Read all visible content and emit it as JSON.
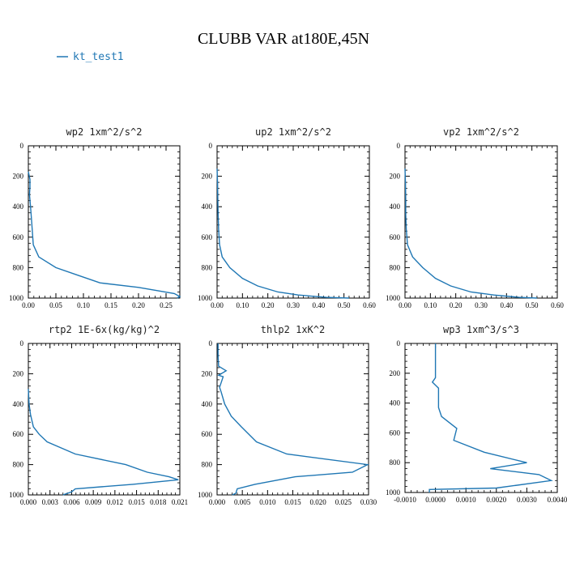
{
  "figure": {
    "title": "CLUBB VAR at180E,45N",
    "legend": {
      "label": "kt_test1",
      "color": "#1f77b4"
    }
  },
  "chart_data": [
    {
      "type": "line",
      "title": "wp2  1xm^2/s^2",
      "xlim": [
        0,
        0.275
      ],
      "ylim": [
        1000,
        0
      ],
      "xticks": [
        0,
        0.05,
        0.1,
        0.15,
        0.2,
        0.25
      ],
      "xticklabels": [
        "0.00",
        "0.05",
        "0.10",
        "0.15",
        "0.20",
        "0.25"
      ],
      "yticks": [
        0,
        200,
        400,
        600,
        800,
        1000
      ],
      "yticklabels": [
        "0",
        "200",
        "400",
        "600",
        "800",
        "1000"
      ],
      "series": [
        {
          "name": "kt_test1",
          "x": [
            0.0,
            0.003,
            0.003,
            0.002,
            0.004,
            0.006,
            0.009,
            0.019,
            0.05,
            0.09,
            0.13,
            0.2,
            0.265,
            0.275,
            0.27
          ],
          "y": [
            170,
            220,
            270,
            320,
            400,
            500,
            650,
            730,
            800,
            850,
            900,
            930,
            970,
            990,
            1000
          ]
        }
      ]
    },
    {
      "type": "line",
      "title": "up2  1xm^2/s^2",
      "xlim": [
        0,
        0.6
      ],
      "ylim": [
        1000,
        0
      ],
      "xticks": [
        0,
        0.1,
        0.2,
        0.3,
        0.4,
        0.5,
        0.6
      ],
      "xticklabels": [
        "0.00",
        "0.10",
        "0.20",
        "0.30",
        "0.40",
        "0.50",
        "0.60"
      ],
      "yticks": [
        0,
        200,
        400,
        600,
        800,
        1000
      ],
      "yticklabels": [
        "0",
        "200",
        "400",
        "600",
        "800",
        "1000"
      ],
      "series": [
        {
          "name": "kt_test1",
          "x": [
            0.0,
            0.002,
            0.003,
            0.004,
            0.006,
            0.01,
            0.02,
            0.05,
            0.1,
            0.16,
            0.24,
            0.32,
            0.43,
            0.52
          ],
          "y": [
            150,
            250,
            350,
            450,
            550,
            650,
            730,
            800,
            870,
            920,
            960,
            980,
            995,
            1000
          ]
        }
      ]
    },
    {
      "type": "line",
      "title": "vp2  1xm^2/s^2",
      "xlim": [
        0,
        0.6
      ],
      "ylim": [
        1000,
        0
      ],
      "xticks": [
        0,
        0.1,
        0.2,
        0.3,
        0.4,
        0.5,
        0.6
      ],
      "xticklabels": [
        "0.00",
        "0.10",
        "0.20",
        "0.30",
        "0.40",
        "0.50",
        "0.60"
      ],
      "yticks": [
        0,
        200,
        400,
        600,
        800,
        1000
      ],
      "yticklabels": [
        "0",
        "200",
        "400",
        "600",
        "800",
        "1000"
      ],
      "series": [
        {
          "name": "kt_test1",
          "x": [
            0.0,
            0.002,
            0.003,
            0.003,
            0.005,
            0.01,
            0.03,
            0.07,
            0.12,
            0.18,
            0.26,
            0.35,
            0.45,
            0.52
          ],
          "y": [
            150,
            250,
            350,
            450,
            550,
            650,
            730,
            800,
            870,
            920,
            960,
            980,
            995,
            1000
          ]
        }
      ]
    },
    {
      "type": "line",
      "title": "rtp2  1E-6x(kg/kg)^2",
      "xlim": [
        0,
        0.021
      ],
      "ylim": [
        1000,
        0
      ],
      "xticks": [
        0,
        0.003,
        0.006,
        0.009,
        0.012,
        0.015,
        0.018,
        0.021
      ],
      "xticklabels": [
        "0.000",
        "0.003",
        "0.006",
        "0.009",
        "0.012",
        "0.015",
        "0.018",
        "0.021"
      ],
      "yticks": [
        0,
        200,
        400,
        600,
        800,
        1000
      ],
      "yticklabels": [
        "0",
        "200",
        "400",
        "600",
        "800",
        "1000"
      ],
      "series": [
        {
          "name": "kt_test1",
          "x": [
            0.0,
            0.0001,
            0.0003,
            0.0007,
            0.0015,
            0.0026,
            0.0065,
            0.0135,
            0.0165,
            0.0195,
            0.0208,
            0.0145,
            0.0065,
            0.006,
            0.0048
          ],
          "y": [
            300,
            400,
            470,
            550,
            600,
            650,
            730,
            800,
            850,
            880,
            900,
            930,
            960,
            980,
            1000
          ]
        }
      ]
    },
    {
      "type": "line",
      "title": "thlp2  1xK^2",
      "xlim": [
        0,
        0.03
      ],
      "ylim": [
        1000,
        0
      ],
      "xticks": [
        0,
        0.005,
        0.01,
        0.015,
        0.02,
        0.025,
        0.03
      ],
      "xticklabels": [
        "0.000",
        "0.005",
        "0.010",
        "0.015",
        "0.020",
        "0.025",
        "0.030"
      ],
      "yticks": [
        0,
        200,
        400,
        600,
        800,
        1000
      ],
      "yticklabels": [
        "0",
        "200",
        "400",
        "600",
        "800",
        "1000"
      ],
      "series": [
        {
          "name": "kt_test1",
          "x": [
            0.0002,
            0.0002,
            0.0003,
            0.0018,
            0.0003,
            0.0012,
            0.0005,
            0.0008,
            0.0015,
            0.0028,
            0.0048,
            0.0078,
            0.0138,
            0.0298,
            0.0268,
            0.0155,
            0.0075,
            0.004,
            0.0037,
            0.003
          ],
          "y": [
            0,
            80,
            150,
            180,
            210,
            220,
            290,
            320,
            400,
            480,
            550,
            650,
            730,
            800,
            850,
            880,
            930,
            960,
            990,
            1000
          ]
        }
      ]
    },
    {
      "type": "line",
      "title": "wp3  1xm^3/s^3",
      "xlim": [
        -0.001,
        0.004
      ],
      "ylim": [
        1000,
        0
      ],
      "xticks": [
        -0.001,
        0.0,
        0.001,
        0.002,
        0.003,
        0.004
      ],
      "xticklabels": [
        "-0.0010",
        "0.0000",
        "0.0010",
        "0.0020",
        "0.0030",
        "0.0040"
      ],
      "yticks": [
        0,
        200,
        400,
        600,
        800,
        1000
      ],
      "yticklabels": [
        "0",
        "200",
        "400",
        "600",
        "800",
        "1000"
      ],
      "series": [
        {
          "name": "kt_test1",
          "x": [
            0.0,
            0.0,
            0.0,
            -0.0001,
            0.0,
            0.0001,
            0.0001,
            0.0002,
            0.0007,
            0.0006,
            0.0016,
            0.003,
            0.0018,
            0.0034,
            0.0038,
            0.002,
            -0.0002,
            -0.0002
          ],
          "y": [
            0,
            100,
            230,
            260,
            280,
            300,
            430,
            490,
            570,
            650,
            730,
            800,
            840,
            880,
            920,
            970,
            980,
            1000
          ]
        }
      ]
    }
  ]
}
